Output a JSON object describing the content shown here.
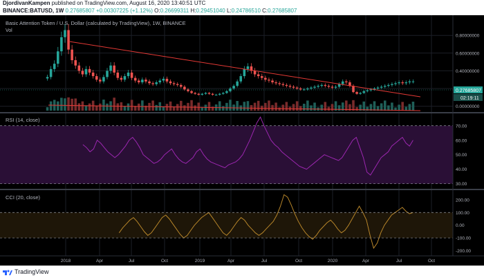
{
  "header": {
    "author": "DjordivanKampen",
    "published": "published on TradingView.com, August 16, 2020 13:40:51 UTC",
    "symbol": "BINANCE:BATUSD, 1W",
    "last": "0.27685807",
    "change": "+0.00307225 (+1.12%)",
    "o_label": "O:",
    "o_value": "0.26699311",
    "h_label": "H:",
    "h_value": "0.29451040",
    "l_label": "L:",
    "l_value": "0.24786510",
    "c_label": "C:",
    "c_value": "0.27685807"
  },
  "legend": {
    "main": "Basic Attention Token / U.S. Dollar (calculated by TradingView), 1W, BINANCE",
    "volume": "Vol",
    "rsi": "RSI (14, close)",
    "cci": "CCI (20, close)"
  },
  "footer": {
    "brand": "TradingView"
  },
  "colors": {
    "background": "#000000",
    "up": "#26a69a",
    "down": "#ef5350",
    "rsi": "#9c27b0",
    "cci": "#b8862a",
    "trendline": "#e53935"
  },
  "chart_data": [
    {
      "type": "candlestick",
      "title": "Basic Attention Token / U.S. Dollar (calculated by TradingView), 1W, BINANCE",
      "x_ticks": [
        "2018",
        "Apr",
        "Jul",
        "Oct",
        "2019",
        "Apr",
        "Jul",
        "Oct",
        "2020",
        "Apr",
        "Jul",
        "Oct"
      ],
      "y_ticks": [
        "0.80000000",
        "0.60000000",
        "0.40000000",
        "0.20000000",
        "0.00000000"
      ],
      "ylim": [
        -0.05,
        0.95
      ],
      "price_label": "0.27685807",
      "countdown_label": "02:19:11",
      "volume_label": "Vol",
      "candles_approx_weekly_close": [
        0.33,
        0.42,
        0.48,
        0.62,
        0.78,
        0.86,
        0.64,
        0.52,
        0.46,
        0.4,
        0.36,
        0.42,
        0.38,
        0.34,
        0.3,
        0.28,
        0.33,
        0.4,
        0.46,
        0.38,
        0.32,
        0.3,
        0.34,
        0.38,
        0.32,
        0.29,
        0.27,
        0.3,
        0.28,
        0.26,
        0.25,
        0.27,
        0.29,
        0.31,
        0.28,
        0.26,
        0.25,
        0.24,
        0.22,
        0.19,
        0.17,
        0.15,
        0.14,
        0.13,
        0.14,
        0.15,
        0.14,
        0.13,
        0.13,
        0.14,
        0.15,
        0.17,
        0.2,
        0.23,
        0.28,
        0.34,
        0.42,
        0.45,
        0.4,
        0.36,
        0.34,
        0.32,
        0.3,
        0.29,
        0.27,
        0.26,
        0.25,
        0.24,
        0.23,
        0.22,
        0.21,
        0.2,
        0.19,
        0.19,
        0.2,
        0.21,
        0.22,
        0.23,
        0.24,
        0.23,
        0.22,
        0.21,
        0.22,
        0.25,
        0.28,
        0.27,
        0.23,
        0.16,
        0.14,
        0.15,
        0.17,
        0.18,
        0.19,
        0.2,
        0.21,
        0.22,
        0.23,
        0.24,
        0.25,
        0.26,
        0.27,
        0.26,
        0.27,
        0.28,
        0.28
      ]
    },
    {
      "type": "line",
      "title": "RSI (14, close)",
      "y_ticks": [
        70.0,
        60.0,
        50.0,
        40.0,
        30.0
      ],
      "ylim": [
        27,
        78
      ],
      "bands": [
        70,
        30
      ],
      "values_approx": [
        57,
        55,
        52,
        54,
        60,
        58,
        55,
        52,
        50,
        48,
        50,
        53,
        56,
        60,
        62,
        59,
        55,
        50,
        48,
        46,
        44,
        45,
        47,
        50,
        52,
        54,
        50,
        47,
        45,
        44,
        46,
        48,
        52,
        54,
        50,
        47,
        45,
        44,
        43,
        42,
        41,
        43,
        44,
        45,
        47,
        50,
        55,
        60,
        66,
        72,
        76,
        70,
        65,
        60,
        57,
        55,
        52,
        50,
        48,
        46,
        44,
        42,
        41,
        40,
        42,
        44,
        46,
        48,
        50,
        49,
        48,
        47,
        46,
        48,
        52,
        56,
        60,
        62,
        55,
        48,
        38,
        36,
        40,
        44,
        48,
        50,
        52,
        56,
        58,
        60,
        62,
        58,
        56,
        60
      ]
    },
    {
      "type": "line",
      "title": "CCI (20, close)",
      "y_ticks": [
        200.0,
        100.0,
        0.0,
        -100.0,
        -200.0
      ],
      "ylim": [
        -230,
        270
      ],
      "bands": [
        100,
        -100
      ],
      "values_approx": [
        -60,
        -20,
        10,
        40,
        60,
        30,
        -10,
        -50,
        -80,
        -60,
        -20,
        20,
        60,
        80,
        50,
        10,
        -30,
        -70,
        -100,
        -80,
        -40,
        0,
        30,
        60,
        80,
        100,
        60,
        20,
        -20,
        -60,
        -80,
        -50,
        -10,
        30,
        60,
        40,
        0,
        -30,
        -60,
        -80,
        -60,
        -30,
        0,
        30,
        80,
        150,
        240,
        220,
        160,
        90,
        30,
        -20,
        -60,
        -90,
        -110,
        -80,
        -40,
        -10,
        20,
        40,
        10,
        -30,
        -60,
        -40,
        0,
        50,
        100,
        150,
        100,
        40,
        -80,
        -180,
        -140,
        -60,
        0,
        40,
        80,
        100,
        120,
        140,
        110,
        90,
        100
      ]
    }
  ]
}
